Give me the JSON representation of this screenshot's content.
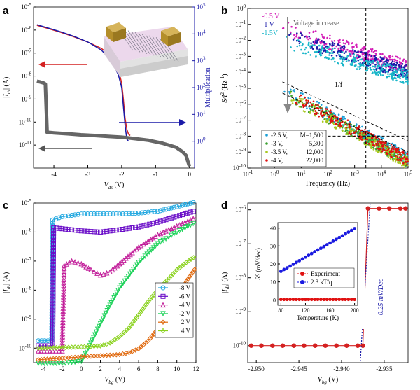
{
  "chart_data": [
    {
      "panel": "a",
      "type": "line",
      "xlabel_main": "V",
      "xlabel_sub": "ds",
      "xlabel_unit": " (V)",
      "ylabel_main": "|I",
      "ylabel_sub": "ds",
      "ylabel_unit": "| (A)",
      "y2label": "Multiplication",
      "xlim": [
        -4.6,
        0.15
      ],
      "ylim_log": [
        -12,
        -5
      ],
      "y2lim_log": [
        -1,
        5
      ],
      "yscale": "log",
      "xticks": [
        -4,
        -3,
        -2,
        -1,
        0
      ],
      "yticks": [
        -11,
        -10,
        -9,
        -8,
        -7,
        -6,
        -5
      ],
      "y2ticks": [
        0,
        1,
        2,
        3,
        4,
        5
      ],
      "series": [
        {
          "name": "",
          "color": "#d42020",
          "x": [
            -4.5,
            -4.2,
            -3.8,
            -3.4,
            -3.0,
            -2.6,
            -2.3,
            -2.1,
            -2.0,
            -1.95,
            -1.9,
            -1.85,
            -1.8,
            -1.75
          ],
          "y": [
            1.6e-06,
            1.2e-06,
            8e-07,
            5e-07,
            3e-07,
            1.6e-07,
            7e-08,
            2e-08,
            5e-09,
            1e-09,
            1.5e-10,
            5e-11,
            3e-11,
            2.6e-11
          ]
        },
        {
          "name": "",
          "color": "#1a1aa8",
          "axis": "right",
          "x": [
            -4.5,
            -4.2,
            -3.8,
            -3.4,
            -3.0,
            -2.6,
            -2.3,
            -2.1,
            -2.0,
            -1.95,
            -1.9,
            -1.85,
            -1.8
          ],
          "y": [
            22000,
            17000,
            12000,
            8000,
            5000,
            2500,
            1000,
            300,
            100,
            20,
            4,
            1.2,
            1
          ]
        },
        {
          "name": "",
          "color": "#666666",
          "x": [
            -4.5,
            -4.4,
            -4.3,
            -4.25,
            -4.2,
            -4.1,
            -4.0,
            -3.6,
            -3.2,
            -2.8,
            -2.4,
            -2.0,
            -1.6,
            -1.2,
            -0.8,
            -0.4,
            -0.2,
            -0.1,
            -0.05,
            0.0
          ],
          "y": [
            6e-09,
            5.5e-09,
            5e-09,
            4.5e-09,
            3.6e-11,
            3.5e-11,
            3.4e-11,
            3.1e-11,
            2.8e-11,
            2.6e-11,
            2.4e-11,
            2.2e-11,
            1.9e-11,
            1.6e-11,
            1.2e-11,
            8e-12,
            5e-12,
            3.5e-12,
            2e-12,
            1.2e-12
          ]
        }
      ]
    },
    {
      "panel": "b",
      "type": "scatter",
      "xlabel": "Frequency (Hz)",
      "ylabel_main": "S/I",
      "ylabel_sup": "2",
      "ylabel_unit": " (Hz",
      "ylabel_unit_sup": "-1",
      "ylabel_close": ")",
      "xlim_log": [
        -1,
        5
      ],
      "ylim_log": [
        -10,
        0
      ],
      "xscale": "log",
      "yscale": "log",
      "xticks": [
        -1,
        0,
        1,
        2,
        3,
        4,
        5
      ],
      "yticks": [
        -10,
        -9,
        -8,
        -7,
        -6,
        -5,
        -4,
        -3,
        -2,
        -1,
        0
      ],
      "annotations": [
        "Voltage increase",
        "1/f"
      ],
      "top_labels": [
        {
          "text": "-0.5 V",
          "color": "#d41fb8"
        },
        {
          "text": "-1 V",
          "color": "#1a1aa8"
        },
        {
          "text": "-1.5V",
          "color": "#19b6c9"
        }
      ],
      "legend": [
        {
          "name": "-2.5 V,",
          "mult": "M=1,500",
          "color": "#1a9fd6"
        },
        {
          "name": "-3 V,",
          "mult": "5,300",
          "color": "#3aa030"
        },
        {
          "name": "-3.5 V,",
          "mult": "12,000",
          "color": "#a8c820"
        },
        {
          "name": "-4 V,",
          "mult": "22,000",
          "color": "#e01010"
        }
      ],
      "series": [
        {
          "name": "-0.5 V",
          "color": "#d41fb8",
          "x_log": [
            0.3,
            5
          ],
          "y_log": [
            -1.2,
            -3.7
          ]
        },
        {
          "name": "-1 V",
          "color": "#1a1aa8",
          "x_log": [
            0.3,
            5
          ],
          "y_log": [
            -1.6,
            -4.0
          ]
        },
        {
          "name": "-1.5V",
          "color": "#19b6c9",
          "x_log": [
            0.3,
            5
          ],
          "y_log": [
            -2.0,
            -4.3
          ]
        },
        {
          "name": "-2.5 V",
          "color": "#1a9fd6",
          "x_log": [
            0.3,
            5
          ],
          "y_log": [
            -5.0,
            -9.4
          ]
        },
        {
          "name": "-3 V",
          "color": "#3aa030",
          "x_log": [
            0.3,
            5
          ],
          "y_log": [
            -5.2,
            -9.6
          ]
        },
        {
          "name": "-3.5 V",
          "color": "#a8c820",
          "x_log": [
            0.3,
            5
          ],
          "y_log": [
            -5.3,
            -9.7
          ]
        },
        {
          "name": "-4 V",
          "color": "#e01010",
          "x_log": [
            0.3,
            5
          ],
          "y_log": [
            -5.1,
            -9.5
          ]
        }
      ]
    },
    {
      "panel": "c",
      "type": "line",
      "xlabel_main": "V",
      "xlabel_sub": "bg",
      "xlabel_unit": " (V)",
      "ylabel_main": "|I",
      "ylabel_sub": "ds",
      "ylabel_unit": "| (A)",
      "xlim": [
        -5,
        12
      ],
      "ylim_log": [
        -10.5,
        -5
      ],
      "yscale": "log",
      "xticks": [
        -4,
        -2,
        0,
        2,
        4,
        6,
        8,
        10,
        12
      ],
      "yticks": [
        -10,
        -9,
        -8,
        -7,
        -6,
        -5
      ],
      "series": [
        {
          "name": "-8 V",
          "color": "#22a8e0",
          "marker": "circle",
          "x": [
            -4.5,
            -3.5,
            -3.1,
            -3.0,
            -2,
            0,
            2,
            4,
            6,
            8,
            10,
            12
          ],
          "y": [
            1.8e-10,
            1.8e-10,
            1.8e-10,
            2.6e-06,
            3.4e-06,
            4.2e-06,
            4.3e-06,
            4.2e-06,
            4.5e-06,
            5.2e-06,
            7.5e-06,
            1.1e-05
          ]
        },
        {
          "name": "-6 V",
          "color": "#6a0dc8",
          "marker": "square",
          "x": [
            -4.5,
            -3.5,
            -3.0,
            -2.9,
            -2,
            0,
            2,
            4,
            6,
            8,
            10,
            12
          ],
          "y": [
            1.2e-10,
            1.2e-10,
            1.2e-10,
            1.4e-06,
            1.3e-06,
            1.1e-06,
            1e-06,
            1.2e-06,
            1.5e-06,
            2.2e-06,
            3.5e-06,
            5.5e-06
          ]
        },
        {
          "name": "-4 V",
          "color": "#c21f9a",
          "marker": "triangle",
          "x": [
            -4.5,
            -3,
            -2.0,
            -1.8,
            -1,
            0,
            1,
            2,
            3,
            4,
            6,
            8,
            10,
            12
          ],
          "y": [
            8e-11,
            8e-11,
            8e-11,
            7e-08,
            1e-07,
            8e-08,
            5e-08,
            3.3e-08,
            4.2e-08,
            8e-08,
            3e-07,
            8e-07,
            1.6e-06,
            3.2e-06
          ]
        },
        {
          "name": "-2 V",
          "color": "#1ed25a",
          "marker": "triangle-down",
          "x": [
            -4.5,
            -2,
            0,
            1,
            2,
            3,
            4,
            6,
            8,
            10,
            12
          ],
          "y": [
            3e-11,
            3e-11,
            3.5e-11,
            1.5e-10,
            7e-10,
            3e-09,
            1.2e-08,
            9e-08,
            4e-07,
            1e-06,
            2.2e-06
          ]
        },
        {
          "name": "2 V",
          "color": "#e06a10",
          "marker": "diamond",
          "x": [
            -4.5,
            -2,
            0,
            2,
            4,
            5,
            6,
            7,
            8,
            9,
            10,
            11,
            12
          ],
          "y": [
            4e-11,
            4.5e-11,
            5e-11,
            5.5e-11,
            6e-11,
            7e-11,
            9.5e-11,
            1.8e-10,
            4.5e-10,
            1.5e-09,
            6e-09,
            2e-08,
            6e-08
          ]
        },
        {
          "name": "4 V",
          "color": "#8ad21e",
          "marker": "diamond",
          "x": [
            -4.5,
            -2,
            0,
            2,
            3,
            4,
            5,
            6,
            7,
            8,
            9,
            10,
            11,
            12
          ],
          "y": [
            1e-10,
            1.05e-10,
            1.1e-10,
            1.2e-10,
            1.5e-10,
            2.5e-10,
            5e-10,
            1.4e-09,
            4e-09,
            1e-08,
            2.2e-08,
            5e-08,
            9e-08,
            1.5e-07
          ]
        }
      ]
    },
    {
      "panel": "d",
      "type": "line",
      "xlabel_main": "V",
      "xlabel_sub": "bg",
      "xlabel_unit": " (V)",
      "ylabel_main": "|I",
      "ylabel_sub": "ds",
      "ylabel_unit": "| (A)",
      "xlim": [
        -2.951,
        -2.9322
      ],
      "ylim_log": [
        -10.5,
        -5.8
      ],
      "yscale": "log",
      "xticks": [
        -2.95,
        -2.945,
        -2.94,
        -2.935
      ],
      "xtick_labels": [
        "-2.950",
        "-2.945",
        "-2.940",
        "-2.935"
      ],
      "yticks": [
        -10,
        -9,
        -8,
        -7,
        -6
      ],
      "annotation": "0.25 mV/Dec",
      "series": [
        {
          "name": "",
          "color": "#d42020",
          "marker": "circle",
          "x": [
            -2.9506,
            -2.9494,
            -2.9481,
            -2.9469,
            -2.9456,
            -2.9444,
            -2.9431,
            -2.9419,
            -2.9406,
            -2.9394,
            -2.9381,
            -2.9375,
            -2.9369,
            -2.9356,
            -2.9344,
            -2.9331,
            -2.9325
          ],
          "y": [
            1e-10,
            1e-10,
            1e-10,
            1e-10,
            1e-10,
            1e-10,
            1e-10,
            1e-10,
            1e-10,
            1e-10,
            1e-10,
            1e-10,
            1.1e-06,
            1.1e-06,
            1.1e-06,
            1.1e-06,
            1.1e-06
          ]
        }
      ],
      "inset": {
        "type": "line",
        "xlabel": "Temperature (K)",
        "ylabel_main": "SS",
        "ylabel_unit": " (mV/dec)",
        "xlim": [
          75,
          205
        ],
        "ylim": [
          -3,
          43
        ],
        "xticks": [
          80,
          120,
          160,
          200
        ],
        "yticks": [
          0,
          10,
          20,
          30,
          40
        ],
        "legend": [
          {
            "name": "Experiment",
            "color": "#e01010"
          },
          {
            "name": "2.3 kT/q",
            "color": "#1a1ae0"
          }
        ],
        "series": [
          {
            "name": "Experiment",
            "color": "#e01010",
            "x": [
              80,
              85,
              90,
              95,
              100,
              105,
              110,
              115,
              120,
              125,
              130,
              135,
              140,
              145,
              150,
              155,
              160,
              165,
              170,
              175,
              180,
              185,
              190,
              195,
              200
            ],
            "y": [
              0.25,
              0.25,
              0.25,
              0.25,
              0.25,
              0.25,
              0.25,
              0.25,
              0.25,
              0.25,
              0.25,
              0.25,
              0.25,
              0.25,
              0.25,
              0.25,
              0.25,
              0.25,
              0.25,
              0.25,
              0.25,
              0.25,
              0.25,
              0.25,
              0.25
            ]
          },
          {
            "name": "2.3 kT/q",
            "color": "#1a1ae0",
            "x": [
              80,
              85,
              90,
              95,
              100,
              105,
              110,
              115,
              120,
              125,
              130,
              135,
              140,
              145,
              150,
              155,
              160,
              165,
              170,
              175,
              180,
              185,
              190,
              195,
              200
            ],
            "y": [
              15.9,
              16.9,
              17.8,
              18.8,
              19.8,
              20.8,
              21.8,
              22.8,
              23.8,
              24.8,
              25.8,
              26.8,
              27.8,
              28.7,
              29.7,
              30.7,
              31.7,
              32.7,
              33.7,
              34.7,
              35.7,
              36.7,
              37.7,
              38.7,
              39.7
            ]
          }
        ]
      }
    }
  ],
  "panel_labels": [
    "a",
    "b",
    "c",
    "d"
  ]
}
